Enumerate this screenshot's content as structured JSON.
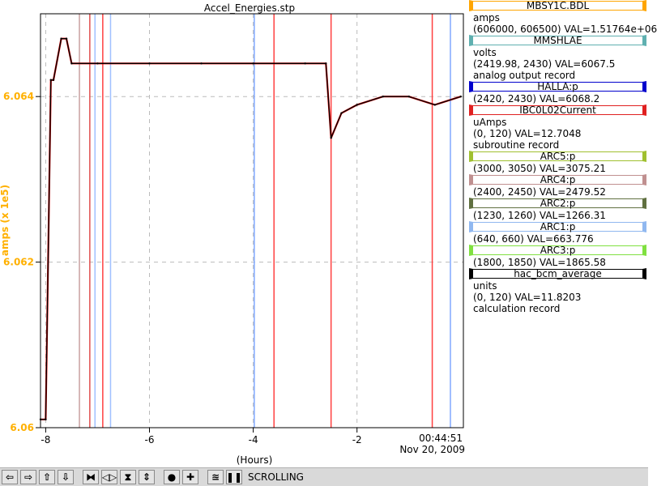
{
  "chart_data": {
    "type": "line",
    "title": "Accel_Energies.stp",
    "xlabel": "(Hours)",
    "ylabel": "amps (x 1e5)",
    "x_ticks": [
      "-8",
      "-6",
      "-4",
      "-2"
    ],
    "time_label": "00:44:51",
    "date_label": "Nov 20, 2009",
    "ylim": [
      6.06,
      6.065
    ],
    "y_ticks": [
      "6.06",
      "6.062",
      "6.064"
    ],
    "xlim": [
      -8.1,
      0.05
    ],
    "grid": true,
    "series": [
      {
        "name": "MBSY1C.BDL",
        "color": "#000000",
        "x": [
          -8.1,
          -8.0,
          -7.9,
          -7.85,
          -7.7,
          -7.6,
          -7.5,
          -7.0,
          -6.0,
          -5.0,
          -4.0,
          -3.0,
          -2.6,
          -2.5,
          -2.3,
          -2.0,
          -1.5,
          -1.0,
          -0.5,
          0.0
        ],
        "values": [
          6.0601,
          6.0601,
          6.0642,
          6.0642,
          6.0647,
          6.0647,
          6.0644,
          6.0644,
          6.0644,
          6.0644,
          6.0644,
          6.0644,
          6.0644,
          6.0635,
          6.0638,
          6.0639,
          6.064,
          6.064,
          6.0639,
          6.064
        ]
      }
    ],
    "markers": [
      {
        "x": -7.35,
        "color": "#c8a0a0"
      },
      {
        "x": -7.15,
        "color": "#e05050"
      },
      {
        "x": -7.05,
        "color": "#a0c0ff"
      },
      {
        "x": -6.9,
        "color": "#ff4040"
      },
      {
        "x": -6.75,
        "color": "#a0c0ff"
      },
      {
        "x": -3.98,
        "color": "#80a8ff"
      },
      {
        "x": -3.6,
        "color": "#ff4040"
      },
      {
        "x": -2.5,
        "color": "#ff4040"
      },
      {
        "x": -0.55,
        "color": "#ff4040"
      },
      {
        "x": -0.2,
        "color": "#80a8ff"
      }
    ]
  },
  "legend": [
    {
      "pv": "MBSY1C.BDL",
      "color": "#ffa500",
      "lines": [
        "amps",
        "(606000, 606500)  VAL=1.51764e+06"
      ]
    },
    {
      "pv": "MMSHLAE",
      "color": "#5fb0b0",
      "lines": [
        "volts",
        "(2419.98, 2430) VAL=6067.5",
        "analog output record"
      ]
    },
    {
      "pv": "HALLA:p",
      "color": "#0000cc",
      "lines": [
        "(2420, 2430) VAL=6068.2"
      ]
    },
    {
      "pv": "IBC0L02Current",
      "color": "#e02020",
      "lines": [
        "uAmps",
        "(0, 120) VAL=12.7048",
        "subroutine record"
      ]
    },
    {
      "pv": "ARC5:p",
      "color": "#a0c030",
      "lines": [
        "(3000, 3050) VAL=3075.21"
      ]
    },
    {
      "pv": "ARC4:p",
      "color": "#c09090",
      "lines": [
        "(2400, 2450) VAL=2479.52"
      ]
    },
    {
      "pv": "ARC2:p",
      "color": "#607040",
      "lines": [
        "(1230, 1260) VAL=1266.31"
      ]
    },
    {
      "pv": "ARC1:p",
      "color": "#90b8f0",
      "lines": [
        "(640, 660) VAL=663.776"
      ]
    },
    {
      "pv": "ARC3:p",
      "color": "#80e040",
      "lines": [
        "(1800, 1850) VAL=1865.58"
      ]
    },
    {
      "pv": "hac_bcm_average",
      "color": "#000000",
      "lines": [
        "units",
        "(0, 120) VAL=11.8203",
        "calculation record"
      ]
    }
  ],
  "toolbar": {
    "buttons": [
      {
        "name": "pan-left-button",
        "icon": "arrow-left-icon",
        "glyph": "⇦"
      },
      {
        "name": "pan-right-button",
        "icon": "arrow-right-icon",
        "glyph": "⇨"
      },
      {
        "name": "pan-up-button",
        "icon": "arrow-up-icon",
        "glyph": "⇧"
      },
      {
        "name": "pan-down-button",
        "icon": "arrow-down-icon",
        "glyph": "⇩"
      },
      {
        "name": "zoom-in-x-button",
        "icon": "zoom-in-horizontal-icon",
        "glyph": "⧓"
      },
      {
        "name": "zoom-out-x-button",
        "icon": "zoom-out-horizontal-icon",
        "glyph": "◁▷"
      },
      {
        "name": "zoom-in-y-button",
        "icon": "zoom-in-vertical-icon",
        "glyph": "⧗"
      },
      {
        "name": "zoom-out-y-button",
        "icon": "zoom-out-vertical-icon",
        "glyph": "⇕"
      },
      {
        "name": "autozoom-button",
        "icon": "circle-icon",
        "glyph": "●"
      },
      {
        "name": "add-button",
        "icon": "plus-icon",
        "glyph": "✚"
      },
      {
        "name": "config-button",
        "icon": "graph-icon",
        "glyph": "≊"
      },
      {
        "name": "pause-button",
        "icon": "pause-icon",
        "glyph": "❚❚"
      }
    ],
    "status": "SCROLLING"
  }
}
